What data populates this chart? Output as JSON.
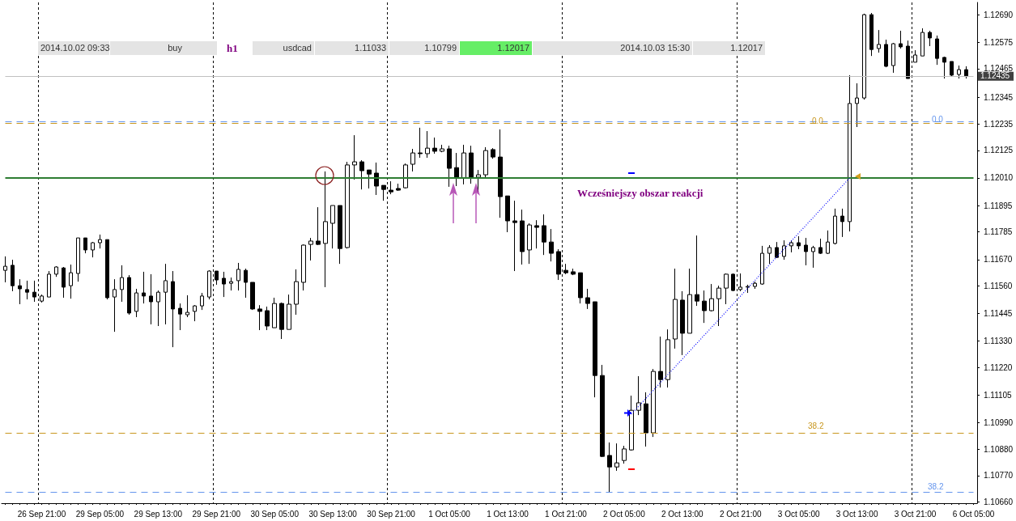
{
  "chart_data": {
    "type": "candlestick",
    "color": "#000000",
    "categories": [
      null,
      null,
      null,
      null,
      null,
      "26 Sep 21:00",
      null,
      null,
      null,
      null,
      null,
      null,
      null,
      "29 Sep 05:00",
      null,
      null,
      null,
      null,
      null,
      null,
      null,
      "29 Sep 13:00",
      null,
      null,
      null,
      null,
      null,
      null,
      null,
      "29 Sep 21:00",
      null,
      null,
      null,
      null,
      null,
      null,
      null,
      "30 Sep 05:00",
      null,
      null,
      null,
      null,
      null,
      null,
      null,
      "30 Sep 13:00",
      null,
      null,
      null,
      null,
      null,
      null,
      null,
      "30 Sep 21:00",
      null,
      null,
      null,
      null,
      null,
      null,
      null,
      "1 Oct 05:00",
      null,
      null,
      null,
      null,
      null,
      null,
      null,
      "1 Oct 13:00",
      null,
      null,
      null,
      null,
      null,
      null,
      null,
      "1 Oct 21:00",
      null,
      null,
      null,
      null,
      null,
      null,
      null,
      "2 Oct 05:00",
      null,
      null,
      null,
      null,
      null,
      null,
      null,
      "2 Oct 13:00",
      null,
      null,
      null,
      null,
      null,
      null,
      null,
      "2 Oct 21:00",
      null,
      null,
      null,
      null,
      null,
      null,
      null,
      "3 Oct 05:00",
      null,
      null,
      null,
      null,
      null,
      null,
      null,
      "3 Oct 13:00",
      null,
      null,
      null,
      null,
      null,
      null,
      null,
      "3 Oct 21:00",
      null,
      null,
      null,
      null,
      null,
      null,
      null,
      "6 Oct 05:00"
    ],
    "ohlc": [
      [
        1.11625,
        1.11683,
        1.11575,
        1.11642
      ],
      [
        1.11646,
        1.11669,
        1.11538,
        1.11561
      ],
      [
        1.11561,
        1.11588,
        1.11484,
        1.11548
      ],
      [
        1.11545,
        1.11582,
        1.11504,
        1.11534
      ],
      [
        1.11534,
        1.11582,
        1.11494,
        1.11514
      ],
      [
        1.11497,
        1.11524,
        1.11491,
        1.11518
      ],
      [
        1.11514,
        1.11622,
        1.11514,
        1.11609
      ],
      [
        1.11609,
        1.11642,
        1.11598,
        1.11639
      ],
      [
        1.11635,
        1.11639,
        1.11511,
        1.11555
      ],
      [
        1.11561,
        1.11649,
        1.11507,
        1.11615
      ],
      [
        1.11612,
        1.1176,
        1.11578,
        1.1176
      ],
      [
        1.1176,
        1.1176,
        1.11696,
        1.1171
      ],
      [
        1.1171,
        1.11743,
        1.11679,
        1.1174
      ],
      [
        1.1174,
        1.11774,
        1.11716,
        1.11753
      ],
      [
        1.11753,
        1.11753,
        1.11504,
        1.11511
      ],
      [
        1.11514,
        1.11588,
        1.11369,
        1.11545
      ],
      [
        1.11545,
        1.11646,
        1.11494,
        1.11595
      ],
      [
        1.11595,
        1.11605,
        1.1144,
        1.11447
      ],
      [
        1.11454,
        1.11548,
        1.1143,
        1.11531
      ],
      [
        1.11531,
        1.11619,
        1.11487,
        1.11518
      ],
      [
        1.11518,
        1.11609,
        1.114,
        1.11494
      ],
      [
        1.11494,
        1.11541,
        1.11393,
        1.11534
      ],
      [
        1.11534,
        1.11652,
        1.114,
        1.11582
      ],
      [
        1.11578,
        1.11622,
        1.11305,
        1.11464
      ],
      [
        1.11467,
        1.11487,
        1.11376,
        1.11443
      ],
      [
        1.1144,
        1.11521,
        1.1143,
        1.1145
      ],
      [
        1.11454,
        1.1148,
        1.11413,
        1.11477
      ],
      [
        1.11477,
        1.11531,
        1.1146,
        1.11518
      ],
      [
        1.11514,
        1.11625,
        1.11504,
        1.11622
      ],
      [
        1.11622,
        1.11622,
        1.11565,
        1.11585
      ],
      [
        1.11592,
        1.11619,
        1.11514,
        1.11568
      ],
      [
        1.11571,
        1.11595,
        1.11541,
        1.11578
      ],
      [
        1.11582,
        1.11656,
        1.11541,
        1.11629
      ],
      [
        1.11625,
        1.11632,
        1.11511,
        1.11575
      ],
      [
        1.11575,
        1.11575,
        1.1146,
        1.11464
      ],
      [
        1.11464,
        1.1148,
        1.11376,
        1.11454
      ],
      [
        1.11457,
        1.11474,
        1.11376,
        1.11393
      ],
      [
        1.11386,
        1.11511,
        1.11386,
        1.11487
      ],
      [
        1.11487,
        1.11491,
        1.11339,
        1.11379
      ],
      [
        1.11379,
        1.11524,
        1.11379,
        1.11484
      ],
      [
        1.11484,
        1.11629,
        1.1144,
        1.11578
      ],
      [
        1.11575,
        1.11733,
        1.11541,
        1.1173
      ],
      [
        1.11733,
        1.1176,
        1.11666,
        1.11747
      ],
      [
        1.11747,
        1.11888,
        1.1173,
        1.11733
      ],
      [
        1.11737,
        1.12037,
        1.11555,
        1.11828
      ],
      [
        1.11821,
        1.11895,
        1.11716,
        1.11895
      ],
      [
        1.11895,
        1.11895,
        1.11652,
        1.11716
      ],
      [
        1.1172,
        1.12077,
        1.11716,
        1.12064
      ],
      [
        1.12064,
        1.12188,
        1.12003,
        1.12077
      ],
      [
        1.12077,
        1.12084,
        1.11962,
        1.1204
      ],
      [
        1.12043,
        1.12043,
        1.11966,
        1.12026
      ],
      [
        1.1203,
        1.12074,
        1.11939,
        1.11976
      ],
      [
        1.11979,
        1.11979,
        1.11915,
        1.11962
      ],
      [
        1.11959,
        1.11996,
        1.11942,
        1.11952
      ],
      [
        1.11966,
        1.11986,
        1.11956,
        1.11959
      ],
      [
        1.11969,
        1.1207,
        1.11966,
        1.12064
      ],
      [
        1.12067,
        1.12131,
        1.12037,
        1.12114
      ],
      [
        1.12114,
        1.12219,
        1.12094,
        1.12111
      ],
      [
        1.12111,
        1.12205,
        1.12094,
        1.12134
      ],
      [
        1.12134,
        1.12178,
        1.12111,
        1.12121
      ],
      [
        1.12121,
        1.12148,
        1.12117,
        1.12131
      ],
      [
        1.12131,
        1.12144,
        1.11973,
        1.1205
      ],
      [
        1.12053,
        1.12114,
        1.11976,
        1.1201
      ],
      [
        1.1201,
        1.12148,
        1.11983,
        1.12114
      ],
      [
        1.12114,
        1.12144,
        1.11986,
        1.1201
      ],
      [
        1.12013,
        1.12043,
        1.11952,
        1.12023
      ],
      [
        1.12023,
        1.12138,
        1.1201,
        1.12124
      ],
      [
        1.12128,
        1.12134,
        1.1209,
        1.12097
      ],
      [
        1.12097,
        1.12212,
        1.11844,
        1.11932
      ],
      [
        1.11935,
        1.11935,
        1.11784,
        1.11831
      ],
      [
        1.11831,
        1.11915,
        1.11622,
        1.11824
      ],
      [
        1.11831,
        1.11878,
        1.11649,
        1.11703
      ],
      [
        1.1171,
        1.11821,
        1.11652,
        1.11814
      ],
      [
        1.11811,
        1.11834,
        1.11716,
        1.11804
      ],
      [
        1.11811,
        1.11858,
        1.11689,
        1.11743
      ],
      [
        1.11743,
        1.11797,
        1.11662,
        1.11696
      ],
      [
        1.11703,
        1.11713,
        1.11585,
        1.11609
      ],
      [
        1.11625,
        1.11652,
        1.11609,
        1.11615
      ],
      [
        1.11619,
        1.11632,
        1.11605,
        1.11609
      ],
      [
        1.11615,
        1.11615,
        1.11487,
        1.11511
      ],
      [
        1.11511,
        1.11548,
        1.11464,
        1.11487
      ],
      [
        1.11494,
        1.11494,
        1.11096,
        1.11187
      ],
      [
        1.11187,
        1.11231,
        1.10847,
        1.1085
      ],
      [
        1.10854,
        1.10908,
        1.10702,
        1.10806
      ],
      [
        1.10806,
        1.10904,
        1.1079,
        1.10823
      ],
      [
        1.10833,
        1.10894,
        1.1082,
        1.10881
      ],
      [
        1.10877,
        1.11103,
        1.10874,
        1.11042
      ],
      [
        1.11042,
        1.11184,
        1.11022,
        1.11073
      ],
      [
        1.11069,
        1.11117,
        1.10891,
        1.10948
      ],
      [
        1.10948,
        1.11214,
        1.10931,
        1.11204
      ],
      [
        1.11204,
        1.11349,
        1.11137,
        1.1117
      ],
      [
        1.1117,
        1.11379,
        1.11137,
        1.11336
      ],
      [
        1.11339,
        1.11632,
        1.11299,
        1.11504
      ],
      [
        1.11501,
        1.11538,
        1.11272,
        1.11363
      ],
      [
        1.11363,
        1.11632,
        1.11363,
        1.11524
      ],
      [
        1.11524,
        1.1177,
        1.11477,
        1.11497
      ],
      [
        1.11497,
        1.11541,
        1.11406,
        1.11457
      ],
      [
        1.11457,
        1.11568,
        1.11454,
        1.11507
      ],
      [
        1.11507,
        1.11561,
        1.11393,
        1.11551
      ],
      [
        1.11551,
        1.11612,
        1.11484,
        1.11609
      ],
      [
        1.11609,
        1.11612,
        1.11538,
        1.11541
      ],
      [
        1.11545,
        1.11612,
        1.11538,
        1.11555
      ],
      [
        1.11555,
        1.11565,
        1.11531,
        1.11558
      ],
      [
        1.11558,
        1.11578,
        1.11548,
        1.11571
      ],
      [
        1.11568,
        1.11727,
        1.11565,
        1.11696
      ],
      [
        1.11696,
        1.1173,
        1.11652,
        1.1172
      ],
      [
        1.1172,
        1.11743,
        1.11676,
        1.11679
      ],
      [
        1.11683,
        1.1175,
        1.11669,
        1.11727
      ],
      [
        1.11727,
        1.1175,
        1.117,
        1.1174
      ],
      [
        1.1174,
        1.11767,
        1.11713,
        1.11727
      ],
      [
        1.1173,
        1.1176,
        1.11646,
        1.11703
      ],
      [
        1.11703,
        1.11727,
        1.11636,
        1.1172
      ],
      [
        1.1172,
        1.11757,
        1.11693,
        1.11696
      ],
      [
        1.11696,
        1.11791,
        1.11693,
        1.11743
      ],
      [
        1.11737,
        1.11882,
        1.11733,
        1.11851
      ],
      [
        1.11851,
        1.11882,
        1.11764,
        1.11828
      ],
      [
        1.11828,
        1.12438,
        1.11787,
        1.1232
      ],
      [
        1.1232,
        1.12404,
        1.12222,
        1.12343
      ],
      [
        1.12343,
        1.12694,
        1.12336,
        1.1269
      ],
      [
        1.1269,
        1.12697,
        1.12518,
        1.12545
      ],
      [
        1.12549,
        1.12626,
        1.12532,
        1.12566
      ],
      [
        1.12566,
        1.12586,
        1.12471,
        1.12475
      ],
      [
        1.12478,
        1.12572,
        1.12448,
        1.12569
      ],
      [
        1.12569,
        1.12623,
        1.12549,
        1.12556
      ],
      [
        1.12559,
        1.12582,
        1.12424,
        1.12424
      ],
      [
        1.12492,
        1.12542,
        1.12492,
        1.12522
      ],
      [
        1.12518,
        1.12633,
        1.12518,
        1.12616
      ],
      [
        1.12616,
        1.12623,
        1.12559,
        1.12593
      ],
      [
        1.12589,
        1.12603,
        1.12481,
        1.12508
      ],
      [
        1.12512,
        1.12515,
        1.12424,
        1.12492
      ],
      [
        1.12495,
        1.12495,
        1.12431,
        1.12438
      ],
      [
        1.12441,
        1.12478,
        1.12424,
        1.12461
      ],
      [
        1.12461,
        1.12475,
        1.12424,
        1.12435
      ],
      null
    ],
    "series": [
      {
        "type": "line",
        "color": "#0000ff",
        "line_style": "dotted",
        "values": [
          null,
          null,
          null,
          null,
          null,
          null,
          null,
          null,
          null,
          null,
          null,
          null,
          null,
          null,
          null,
          null,
          null,
          null,
          null,
          null,
          null,
          null,
          null,
          null,
          null,
          null,
          null,
          null,
          null,
          null,
          null,
          null,
          null,
          null,
          null,
          null,
          null,
          null,
          null,
          null,
          null,
          null,
          null,
          null,
          null,
          null,
          null,
          null,
          null,
          null,
          null,
          null,
          null,
          null,
          null,
          null,
          null,
          null,
          null,
          null,
          null,
          null,
          null,
          null,
          null,
          null,
          null,
          null,
          null,
          null,
          null,
          null,
          null,
          null,
          null,
          null,
          null,
          null,
          null,
          null,
          null,
          null,
          null,
          null,
          null,
          null,
          1.11026,
          null,
          null,
          null,
          null,
          null,
          null,
          null,
          null,
          null,
          null,
          null,
          null,
          null,
          null,
          null,
          null,
          null,
          null,
          null,
          null,
          null,
          null,
          null,
          null,
          null,
          null,
          null,
          null,
          null,
          1.1201,
          null,
          null,
          null,
          null,
          null,
          null,
          null,
          null,
          null,
          null,
          null,
          null,
          null,
          null,
          null,
          null,
          null
        ]
      }
    ],
    "ylim": [
      1.10655,
      1.12741
    ],
    "yticks": [
      {
        "value": 1.1066,
        "label": "1.10660"
      },
      {
        "value": 1.1077,
        "label": "1.10770"
      },
      {
        "value": 1.1088,
        "label": "1.10880"
      },
      {
        "value": 1.1099,
        "label": "1.10990"
      },
      {
        "value": 1.11105,
        "label": "1.11105"
      },
      {
        "value": 1.1122,
        "label": "1.11220"
      },
      {
        "value": 1.1133,
        "label": "1.11330"
      },
      {
        "value": 1.11445,
        "label": "1.11445"
      },
      {
        "value": 1.1156,
        "label": "1.11560"
      },
      {
        "value": 1.1167,
        "label": "1.11670"
      },
      {
        "value": 1.11785,
        "label": "1.11785"
      },
      {
        "value": 1.11895,
        "label": "1.11895"
      },
      {
        "value": 1.1201,
        "label": "1.12010"
      },
      {
        "value": 1.12125,
        "label": "1.12125"
      },
      {
        "value": 1.12235,
        "label": "1.12235"
      },
      {
        "value": 1.12345,
        "label": "1.12345"
      },
      {
        "value": 1.12465,
        "label": "1.12465"
      },
      {
        "value": 1.12575,
        "label": "1.12575"
      },
      {
        "value": 1.1269,
        "label": "1.12690"
      }
    ],
    "grid": "x",
    "ref_lines": [
      {
        "axis": "y",
        "value": 1.12435,
        "label": "1.12435",
        "color": "#c0c0c0",
        "line_style": "solid"
      },
      {
        "axis": "y",
        "value": 1.12238,
        "color": "#c8961e",
        "line_style": "dashed"
      },
      {
        "axis": "y",
        "value": 1.12245,
        "color": "#6495ed",
        "line_style": "dashed"
      },
      {
        "axis": "y",
        "value": 1.1201,
        "label": "Wcześniejszy obszar reakcji",
        "color": "#2e7d32",
        "line_style": "solid"
      },
      {
        "axis": "y",
        "value": 1.10948,
        "color": "#c8961e",
        "line_style": "dashed"
      },
      {
        "axis": "y",
        "value": 1.10702,
        "color": "#6495ed",
        "line_style": "dashed"
      }
    ],
    "annotations": [
      "2014.10.02 09:33",
      "buy",
      "h1",
      "usdcad",
      "1.11033",
      "1.10799",
      "1.12017",
      "2014.10.03 15:30",
      "1.12017",
      "0.0",
      "0.0",
      "38.2",
      "38.2"
    ]
  }
}
